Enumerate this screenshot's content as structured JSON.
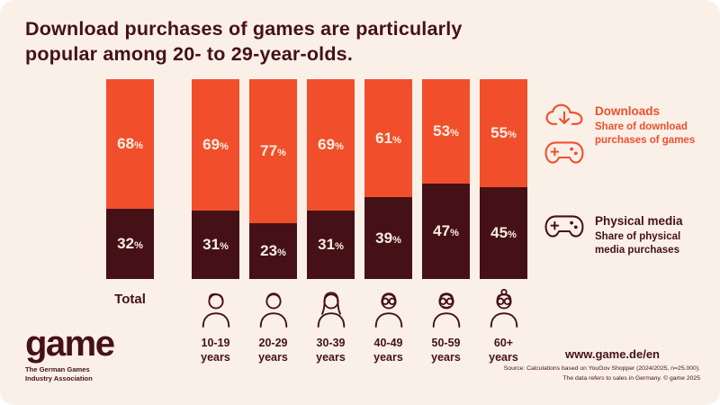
{
  "colors": {
    "orange": "#F14F2B",
    "dark": "#451117",
    "cream_text": "#FBEFE4",
    "background": "#FAF0E8"
  },
  "title": {
    "line1": "Download purchases of games are particularly",
    "line2": "popular among 20- to 29-year-olds."
  },
  "chart_data": {
    "type": "bar",
    "stacked": true,
    "categories": [
      "Total",
      "10-19 years",
      "20-29 years",
      "30-39 years",
      "40-49 years",
      "50-59 years",
      "60+ years"
    ],
    "series": [
      {
        "name": "Downloads",
        "color": "#F14F2B",
        "values": [
          68,
          69,
          77,
          69,
          61,
          53,
          55
        ]
      },
      {
        "name": "Physical media",
        "color": "#451117",
        "values": [
          32,
          31,
          23,
          31,
          39,
          47,
          45
        ]
      }
    ],
    "unit": "%",
    "ylim": [
      0,
      100
    ],
    "grid": false,
    "legend_position": "right",
    "title": "Download purchases of games are particularly popular among 20- to 29-year-olds."
  },
  "age_groups": [
    {
      "label": "10-19",
      "sub": "years",
      "icon": "person-teen-icon",
      "variant": "teen"
    },
    {
      "label": "20-29",
      "sub": "years",
      "icon": "person-young-man-icon",
      "variant": "young-man"
    },
    {
      "label": "30-39",
      "sub": "years",
      "icon": "person-woman-icon",
      "variant": "woman"
    },
    {
      "label": "40-49",
      "sub": "years",
      "icon": "person-man-glasses-icon",
      "variant": "man-glasses"
    },
    {
      "label": "50-59",
      "sub": "years",
      "icon": "person-older-man-icon",
      "variant": "older-man"
    },
    {
      "label": "60+",
      "sub": "years",
      "icon": "person-older-woman-icon",
      "variant": "older-woman"
    }
  ],
  "total_label": "Total",
  "legend": {
    "downloads": {
      "label": "Downloads",
      "desc": "Share of download purchases of games"
    },
    "physical": {
      "label": "Physical media",
      "desc": "Share of physical media purchases"
    }
  },
  "footer": {
    "logo": "game",
    "logo_sub1": "The German Games",
    "logo_sub2": "Industry Association",
    "url": "www.game.de/en",
    "source_line1": "Source: Calculations based on YouGov Shopper (2024/2025, n=25.000).",
    "source_line2": "The data refers to sales in Germany. © game 2025"
  }
}
